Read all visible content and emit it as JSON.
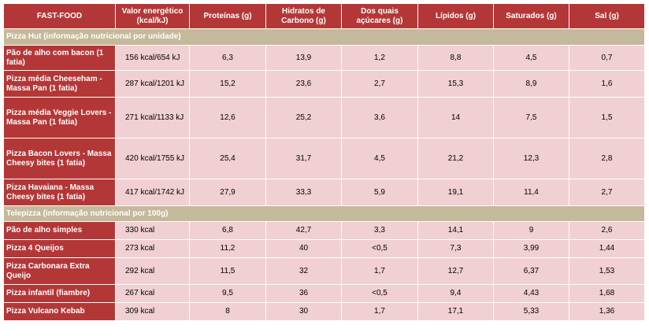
{
  "headers": [
    "FAST-FOOD",
    "Valor energético (kcal/kJ)",
    "Proteínas (g)",
    "Hidratos de Carbono (g)",
    "Dos quais açúcares (g)",
    "Lípidos (g)",
    "Saturados (g)",
    "Sal (g)"
  ],
  "sections": [
    {
      "title": "Pizza Hut (informação nutricional por unidade)",
      "rows": [
        {
          "name": "Pão de alho com bacon (1 fatia)",
          "cells": [
            "156 kcal/654 kJ",
            "6,3",
            "13,9",
            "1,2",
            "8,8",
            "4,5",
            "0,7"
          ]
        },
        {
          "name": "Pizza média Cheeseham - Massa Pan (1 fatia)",
          "cells": [
            "287 kcal/1201 kJ",
            "15,2",
            "23,6",
            "2,7",
            "15,3",
            "8,9",
            "1,6"
          ]
        },
        {
          "name": "Pizza média Veggie Lovers - Massa Pan (1 fatia)",
          "cells": [
            "271 kcal/1133 kJ",
            "12,6",
            "25,2",
            "3,6",
            "14",
            "7,5",
            "1,5"
          ]
        },
        {
          "name": "Pizza Bacon Lovers - Massa Cheesy bites (1 fatia)",
          "cells": [
            "420 kcal/1755 kJ",
            "25,4",
            "31,7",
            "4,5",
            "21,2",
            "12,3",
            "2,8"
          ]
        },
        {
          "name": "Pizza Havaiana - Massa Cheesy bites (1 fatia)",
          "cells": [
            "417 kcal/1742 kJ",
            "27,9",
            "33,3",
            "5,9",
            "19,1",
            "11,4",
            "2,7"
          ]
        }
      ]
    },
    {
      "title": "Telepizza (informação nutricional por 100g)",
      "rows": [
        {
          "name": "Pão de alho simples",
          "cells": [
            "330 kcal",
            "6,8",
            "42,7",
            "3,3",
            "14,1",
            "9",
            "2,6"
          ]
        },
        {
          "name": "Pizza 4 Queijos",
          "cells": [
            "273 kcal",
            "11,2",
            "40",
            "<0,5",
            "7,3",
            "3,99",
            "1,44"
          ]
        },
        {
          "name": "Pizza Carbonara Extra Queijo",
          "cells": [
            "292 kcal",
            "11,5",
            "32",
            "1,7",
            "12,7",
            "6,37",
            "1,53"
          ]
        },
        {
          "name": "Pizza infantil (fiambre)",
          "cells": [
            "267 kcal",
            "9,5",
            "36",
            "<0,5",
            "9,4",
            "4,43",
            "1,68"
          ]
        },
        {
          "name": "Pizza Vulcano Kebab",
          "cells": [
            "309 kcal",
            "8",
            "30",
            "1,7",
            "17,1",
            "5,33",
            "1,36"
          ]
        }
      ]
    }
  ]
}
